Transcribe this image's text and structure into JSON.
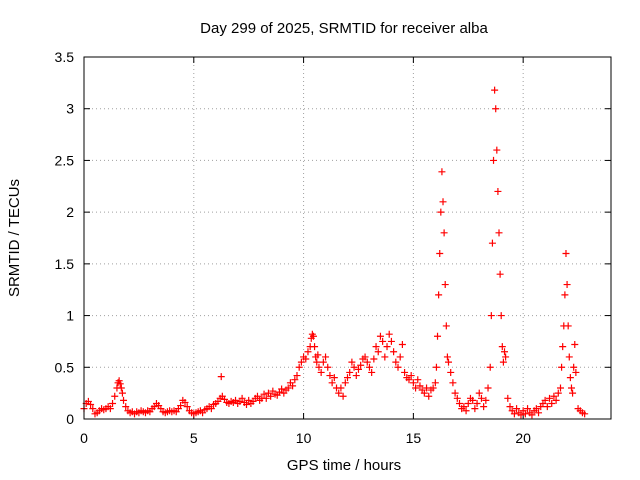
{
  "chart_data": {
    "type": "scatter",
    "title": "Day 299 of 2025, SRMTID for receiver alba",
    "xlabel": "GPS time / hours",
    "ylabel": "SRMTID / TECUs",
    "xlim": [
      0,
      24
    ],
    "ylim": [
      0,
      3.5
    ],
    "xticks": [
      0,
      5,
      10,
      15,
      20
    ],
    "xtick_labels": [
      "0",
      "5",
      "10",
      "15",
      "20"
    ],
    "yticks": [
      0,
      0.5,
      1,
      1.5,
      2,
      2.5,
      3,
      3.5
    ],
    "ytick_labels": [
      "0",
      "0.5",
      "1",
      "1.5",
      "2",
      "2.5",
      "3",
      "3.5"
    ],
    "grid": true,
    "marker": "+",
    "color": "#ff0000",
    "series": [
      {
        "name": "SRMTID",
        "x": [
          0.0,
          0.1,
          0.2,
          0.3,
          0.4,
          0.5,
          0.6,
          0.7,
          0.8,
          0.9,
          1.0,
          1.1,
          1.2,
          1.3,
          1.4,
          1.5,
          1.55,
          1.6,
          1.65,
          1.7,
          1.75,
          1.8,
          1.9,
          2.0,
          2.1,
          2.2,
          2.3,
          2.4,
          2.5,
          2.6,
          2.7,
          2.8,
          2.9,
          3.0,
          3.1,
          3.2,
          3.3,
          3.4,
          3.5,
          3.6,
          3.7,
          3.8,
          3.9,
          4.0,
          4.1,
          4.2,
          4.3,
          4.4,
          4.5,
          4.6,
          4.7,
          4.8,
          4.9,
          5.0,
          5.1,
          5.2,
          5.3,
          5.4,
          5.5,
          5.6,
          5.7,
          5.8,
          5.9,
          6.0,
          6.1,
          6.2,
          6.25,
          6.3,
          6.4,
          6.5,
          6.6,
          6.7,
          6.8,
          6.9,
          7.0,
          7.1,
          7.2,
          7.3,
          7.4,
          7.5,
          7.6,
          7.7,
          7.8,
          7.9,
          8.0,
          8.1,
          8.2,
          8.3,
          8.4,
          8.5,
          8.6,
          8.7,
          8.8,
          8.9,
          9.0,
          9.1,
          9.2,
          9.3,
          9.4,
          9.5,
          9.6,
          9.7,
          9.8,
          9.9,
          10.0,
          10.1,
          10.2,
          10.3,
          10.35,
          10.4,
          10.45,
          10.5,
          10.55,
          10.6,
          10.65,
          10.7,
          10.8,
          10.9,
          11.0,
          11.1,
          11.2,
          11.3,
          11.4,
          11.5,
          11.6,
          11.7,
          11.8,
          11.9,
          12.0,
          12.1,
          12.2,
          12.3,
          12.4,
          12.5,
          12.6,
          12.7,
          12.8,
          12.9,
          13.0,
          13.1,
          13.2,
          13.3,
          13.4,
          13.5,
          13.6,
          13.7,
          13.8,
          13.9,
          14.0,
          14.1,
          14.2,
          14.3,
          14.4,
          14.5,
          14.6,
          14.7,
          14.8,
          14.9,
          15.0,
          15.1,
          15.2,
          15.3,
          15.4,
          15.5,
          15.6,
          15.7,
          15.8,
          15.9,
          16.0,
          16.05,
          16.1,
          16.15,
          16.2,
          16.25,
          16.3,
          16.35,
          16.4,
          16.45,
          16.5,
          16.55,
          16.6,
          16.7,
          16.8,
          16.9,
          17.0,
          17.1,
          17.2,
          17.3,
          17.4,
          17.5,
          17.6,
          17.7,
          17.8,
          17.9,
          18.0,
          18.1,
          18.2,
          18.3,
          18.4,
          18.5,
          18.55,
          18.6,
          18.65,
          18.7,
          18.75,
          18.8,
          18.85,
          18.9,
          18.95,
          19.0,
          19.05,
          19.1,
          19.15,
          19.2,
          19.3,
          19.4,
          19.5,
          19.6,
          19.7,
          19.8,
          19.9,
          20.0,
          20.1,
          20.2,
          20.3,
          20.4,
          20.5,
          20.6,
          20.7,
          20.8,
          20.9,
          21.0,
          21.1,
          21.2,
          21.3,
          21.4,
          21.5,
          21.6,
          21.7,
          21.75,
          21.8,
          21.85,
          21.9,
          21.95,
          22.0,
          22.05,
          22.1,
          22.15,
          22.2,
          22.25,
          22.3,
          22.35,
          22.4,
          22.5,
          22.6,
          22.7,
          22.8
        ],
        "y": [
          0.1,
          0.15,
          0.17,
          0.14,
          0.1,
          0.05,
          0.06,
          0.08,
          0.1,
          0.09,
          0.1,
          0.12,
          0.1,
          0.15,
          0.22,
          0.3,
          0.35,
          0.37,
          0.34,
          0.3,
          0.25,
          0.18,
          0.12,
          0.08,
          0.06,
          0.07,
          0.05,
          0.07,
          0.06,
          0.08,
          0.07,
          0.06,
          0.08,
          0.07,
          0.1,
          0.12,
          0.15,
          0.13,
          0.1,
          0.07,
          0.06,
          0.07,
          0.08,
          0.07,
          0.08,
          0.07,
          0.1,
          0.13,
          0.18,
          0.16,
          0.12,
          0.08,
          0.06,
          0.05,
          0.06,
          0.07,
          0.08,
          0.06,
          0.09,
          0.1,
          0.12,
          0.1,
          0.14,
          0.15,
          0.17,
          0.2,
          0.41,
          0.22,
          0.19,
          0.16,
          0.15,
          0.17,
          0.16,
          0.18,
          0.15,
          0.17,
          0.2,
          0.16,
          0.14,
          0.18,
          0.15,
          0.17,
          0.2,
          0.22,
          0.18,
          0.2,
          0.24,
          0.2,
          0.25,
          0.22,
          0.27,
          0.24,
          0.23,
          0.26,
          0.29,
          0.25,
          0.28,
          0.3,
          0.35,
          0.32,
          0.38,
          0.42,
          0.5,
          0.55,
          0.6,
          0.58,
          0.65,
          0.7,
          0.78,
          0.82,
          0.8,
          0.7,
          0.6,
          0.55,
          0.62,
          0.5,
          0.45,
          0.55,
          0.6,
          0.5,
          0.42,
          0.35,
          0.4,
          0.3,
          0.25,
          0.3,
          0.22,
          0.35,
          0.4,
          0.45,
          0.55,
          0.5,
          0.42,
          0.48,
          0.52,
          0.58,
          0.6,
          0.55,
          0.5,
          0.45,
          0.58,
          0.7,
          0.65,
          0.8,
          0.75,
          0.6,
          0.7,
          0.82,
          0.75,
          0.65,
          0.55,
          0.5,
          0.6,
          0.72,
          0.45,
          0.4,
          0.38,
          0.42,
          0.35,
          0.3,
          0.38,
          0.32,
          0.28,
          0.25,
          0.3,
          0.22,
          0.28,
          0.3,
          0.35,
          0.5,
          0.8,
          1.2,
          1.6,
          2.0,
          2.39,
          2.1,
          1.8,
          1.3,
          0.9,
          0.6,
          0.55,
          0.45,
          0.35,
          0.25,
          0.2,
          0.15,
          0.1,
          0.12,
          0.08,
          0.15,
          0.2,
          0.18,
          0.1,
          0.15,
          0.25,
          0.2,
          0.12,
          0.18,
          0.3,
          0.5,
          1.0,
          1.7,
          2.5,
          3.18,
          3.0,
          2.6,
          2.2,
          1.8,
          1.4,
          1.0,
          0.7,
          0.55,
          0.65,
          0.6,
          0.2,
          0.12,
          0.08,
          0.05,
          0.1,
          0.06,
          0.04,
          0.08,
          0.05,
          0.1,
          0.06,
          0.04,
          0.08,
          0.1,
          0.06,
          0.12,
          0.15,
          0.18,
          0.12,
          0.2,
          0.15,
          0.22,
          0.18,
          0.25,
          0.3,
          0.5,
          0.7,
          0.9,
          1.2,
          1.6,
          1.3,
          0.9,
          0.6,
          0.4,
          0.3,
          0.25,
          0.5,
          0.72,
          0.45,
          0.1,
          0.08,
          0.06,
          0.05
        ]
      }
    ]
  }
}
